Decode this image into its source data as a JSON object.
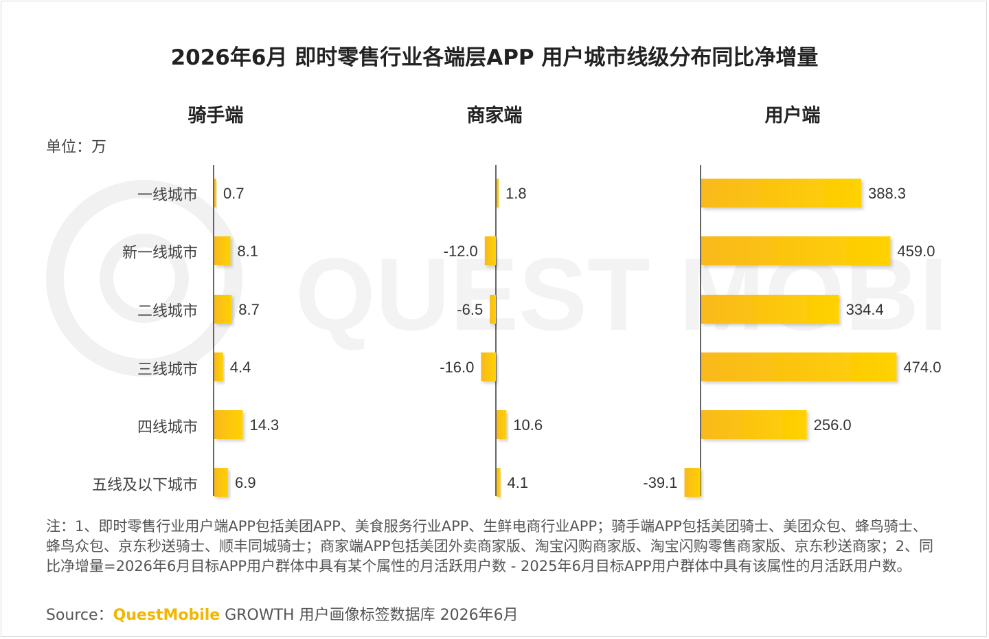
{
  "title": "2026年6月 即时零售行业各端层APP 用户城市线级分布同比净增量",
  "unit": "单位：万",
  "watermark": "QUEST MOBILE",
  "colors": {
    "bar_start": "#F9B91C",
    "bar_end": "#FFD200",
    "axis": "#333333"
  },
  "chart_data": [
    {
      "type": "bar",
      "title": "骑手端",
      "categories": [
        "一线城市",
        "新一线城市",
        "二线城市",
        "三线城市",
        "四线城市",
        "五线及以下城市"
      ],
      "values": [
        0.7,
        8.1,
        8.7,
        4.4,
        14.3,
        6.9
      ],
      "labels": [
        "0.7",
        "8.1",
        "8.7",
        "4.4",
        "14.3",
        "6.9"
      ]
    },
    {
      "type": "bar",
      "title": "商家端",
      "categories": [
        "一线城市",
        "新一线城市",
        "二线城市",
        "三线城市",
        "四线城市",
        "五线及以下城市"
      ],
      "values": [
        1.8,
        -12.0,
        -6.5,
        -16.0,
        10.6,
        4.1
      ],
      "labels": [
        "1.8",
        "-12.0",
        "-6.5",
        "-16.0",
        "10.6",
        "4.1"
      ]
    },
    {
      "type": "bar",
      "title": "用户端",
      "categories": [
        "一线城市",
        "新一线城市",
        "二线城市",
        "三线城市",
        "四线城市",
        "五线及以下城市"
      ],
      "values": [
        388.3,
        459.0,
        334.4,
        474.0,
        256.0,
        -39.1
      ],
      "labels": [
        "388.3",
        "459.0",
        "334.4",
        "474.0",
        "256.0",
        "-39.1"
      ]
    }
  ],
  "note": "注：1、即时零售行业用户端APP包括美团APP、美食服务行业APP、生鲜电商行业APP；骑手端APP包括美团骑士、美团众包、蜂鸟骑士、蜂鸟众包、京东秒送骑士、顺丰同城骑士；商家端APP包括美团外卖商家版、淘宝闪购商家版、淘宝闪购零售商家版、京东秒送商家；2、同比净增量=2026年6月目标APP用户群体中具有某个属性的月活跃用户数 - 2025年6月目标APP用户群体中具有该属性的月活跃用户数。",
  "source": {
    "prefix": "Source：",
    "brand": "QuestMobile",
    "rest": " GROWTH 用户画像标签数据库 2026年6月"
  }
}
